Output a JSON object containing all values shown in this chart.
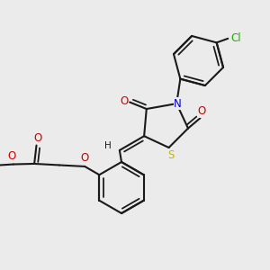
{
  "bg": "#ebebeb",
  "bc": "#1a1a1a",
  "bw": 1.5,
  "atom_colors": {
    "O": "#cc0000",
    "N": "#0000cc",
    "S": "#bbbb00",
    "Cl": "#22aa00",
    "H": "#1a1a1a"
  },
  "fs": 8.5,
  "xlim": [
    0,
    10
  ],
  "ylim": [
    0,
    10
  ]
}
